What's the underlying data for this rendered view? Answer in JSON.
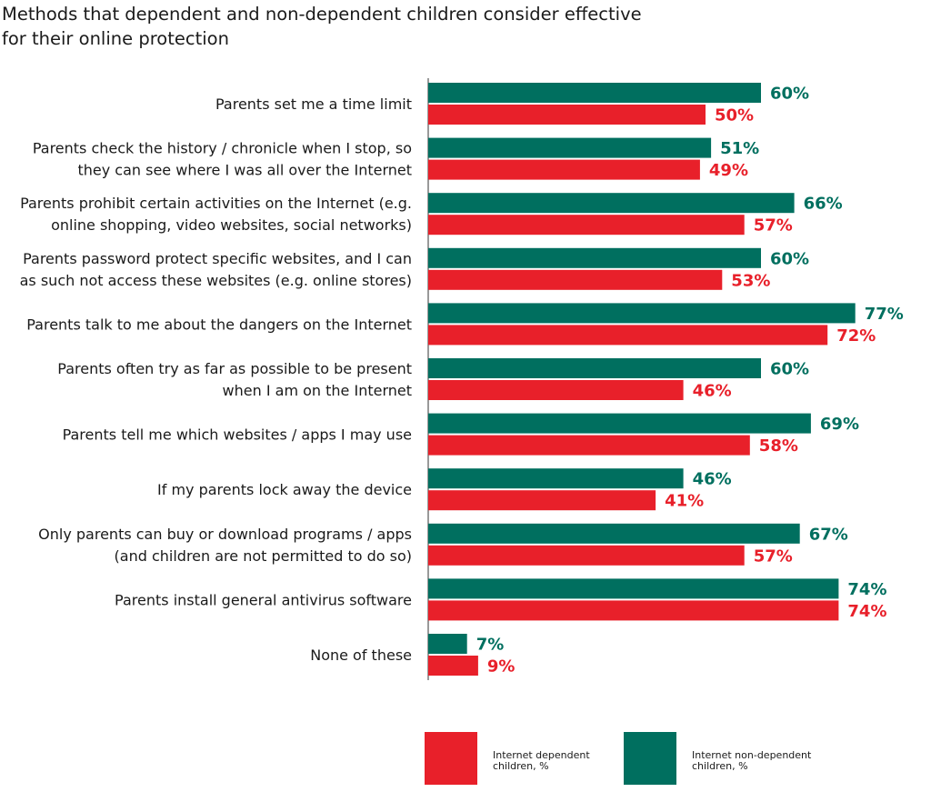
{
  "chart_data": {
    "type": "bar",
    "orientation": "horizontal",
    "title": "Methods that dependent and non-dependent children consider effective\nfor their online protection",
    "categories": [
      [
        "Parents set me a time limit"
      ],
      [
        "Parents check the history / chronicle when I stop, so",
        "they can see where I was all over the Internet"
      ],
      [
        "Parents prohibit certain activities on the Internet (e.g.",
        "online shopping, video websites, social networks)"
      ],
      [
        "Parents password protect specific websites, and I can",
        "as such not access these websites (e.g. online stores)"
      ],
      [
        "Parents talk to me about the dangers on the Internet"
      ],
      [
        "Parents often try as far as possible to be present",
        "when I am on the Internet"
      ],
      [
        "Parents tell me which websites / apps I may use"
      ],
      [
        "If my parents lock away the device"
      ],
      [
        "Only parents can buy or download programs / apps",
        "(and children are not permitted to do so)"
      ],
      [
        "Parents install general antivirus software"
      ],
      [
        "None of these"
      ]
    ],
    "series": [
      {
        "name": "Internet non-dependent children, %",
        "color": "#006f5f",
        "values": [
          60,
          51,
          66,
          60,
          77,
          60,
          69,
          46,
          67,
          74,
          7
        ]
      },
      {
        "name": "Internet dependent children, %",
        "color": "#e8202a",
        "values": [
          50,
          49,
          57,
          53,
          72,
          46,
          58,
          41,
          57,
          74,
          9
        ]
      }
    ],
    "value_suffix": "%",
    "xlim": [
      0,
      100
    ],
    "grid": false,
    "legend": {
      "position": "bottom-right",
      "items": [
        {
          "series": 1,
          "lines": [
            "Internet dependent",
            "children, %"
          ]
        },
        {
          "series": 0,
          "lines": [
            "Internet non-dependent",
            "children, %"
          ]
        }
      ]
    }
  }
}
